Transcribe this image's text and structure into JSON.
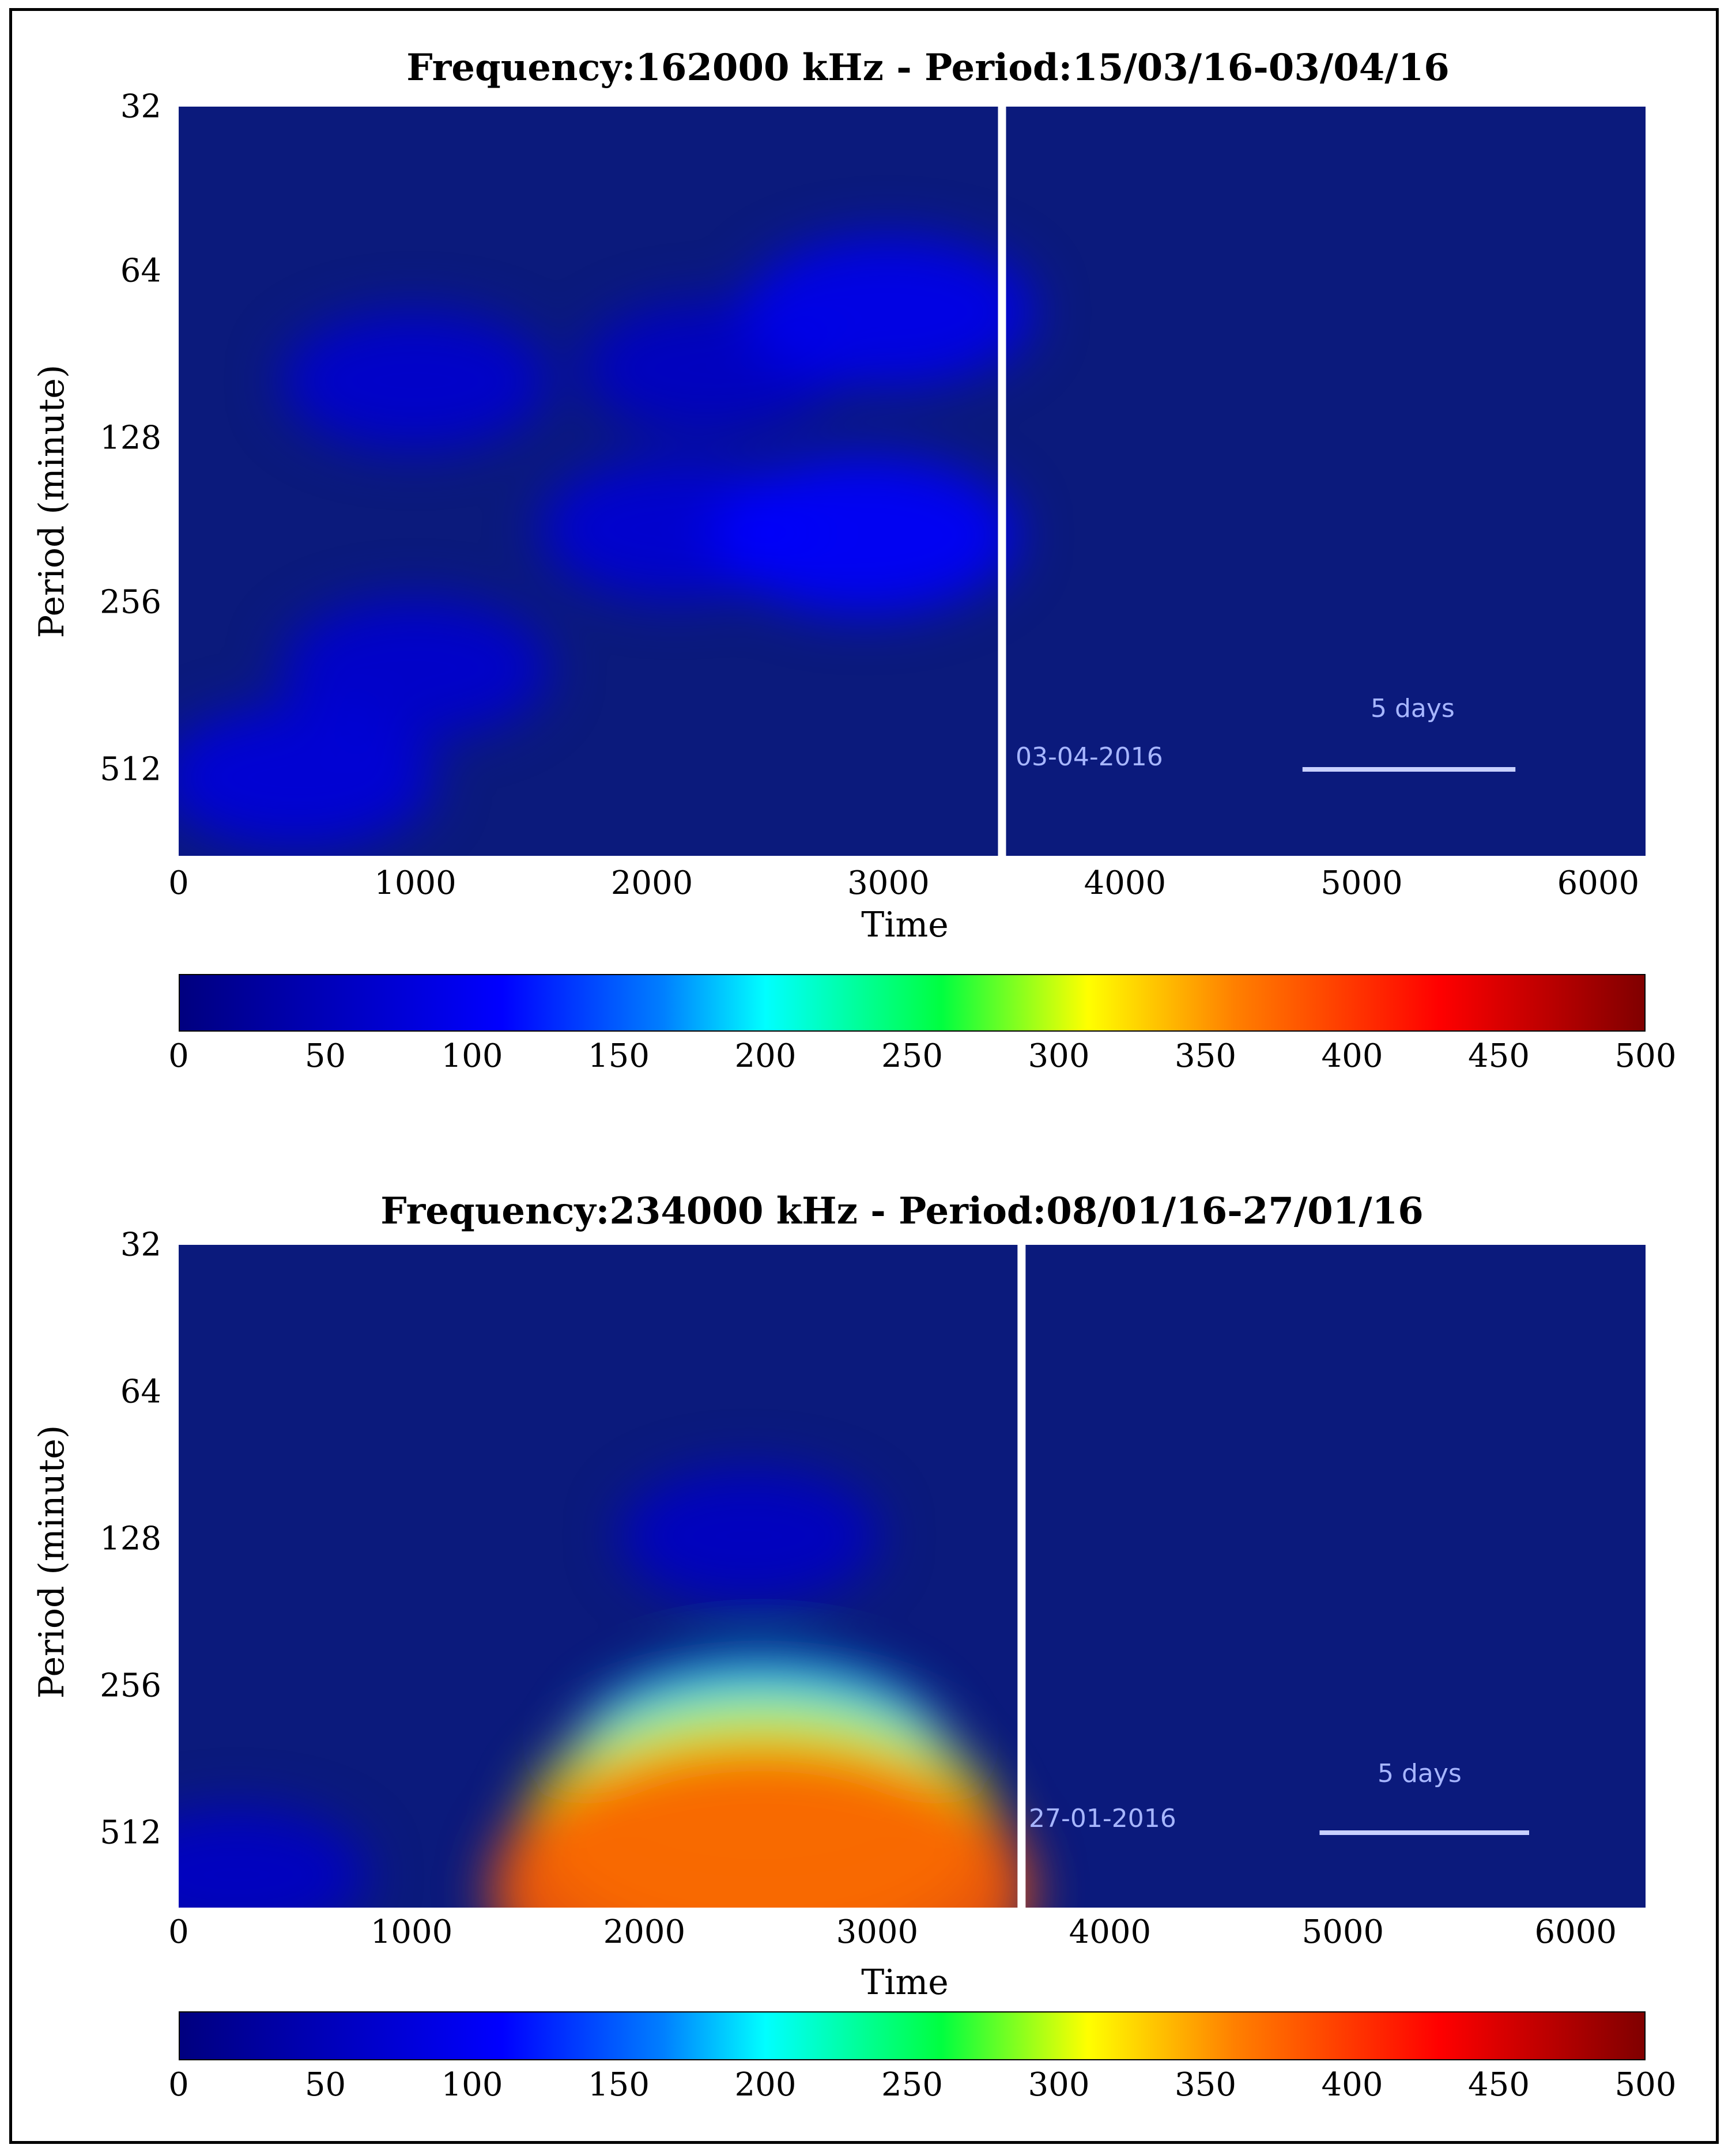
{
  "chart_data": [
    {
      "type": "heatmap",
      "title": "Frequency:162000 kHz - Period:15/03/16-03/04/16",
      "xlabel": "Time",
      "ylabel": "Period (minute)",
      "xlim": [
        0,
        6200
      ],
      "x_ticks": [
        "0",
        "1000",
        "2000",
        "3000",
        "4000",
        "5000",
        "6000"
      ],
      "y_ticks": [
        "32",
        "64",
        "128",
        "256",
        "512"
      ],
      "y_scale": "log2",
      "marker": {
        "x": 3480,
        "label": "03-04-2016"
      },
      "scale_bar": {
        "label": "5 days",
        "x_start": 4750,
        "x_end": 5650
      },
      "colorbar": {
        "range": [
          0,
          500
        ],
        "ticks": [
          "0",
          "50",
          "100",
          "150",
          "200",
          "250",
          "300",
          "350",
          "400",
          "450",
          "500"
        ]
      },
      "features": [
        {
          "x": 1000,
          "period": 100,
          "value": 70
        },
        {
          "x": 2250,
          "period": 95,
          "value": 60
        },
        {
          "x": 3000,
          "period": 75,
          "value": 95
        },
        {
          "x": 2900,
          "period": 190,
          "value": 110
        },
        {
          "x": 2100,
          "period": 185,
          "value": 75
        },
        {
          "x": 1000,
          "period": 330,
          "value": 70
        },
        {
          "x": 500,
          "period": 520,
          "value": 80
        }
      ]
    },
    {
      "type": "heatmap",
      "title": "Frequency:234000 kHz - Period:08/01/16-27/01/16",
      "xlabel": "Time",
      "ylabel": "Period (minute)",
      "xlim": [
        0,
        6300
      ],
      "x_ticks": [
        "0",
        "1000",
        "2000",
        "3000",
        "4000",
        "5000",
        "6000"
      ],
      "y_ticks": [
        "32",
        "64",
        "128",
        "256",
        "512"
      ],
      "y_scale": "log2",
      "marker": {
        "x": 3620,
        "label": "27-01-2016"
      },
      "scale_bar": {
        "label": "5 days",
        "x_start": 4900,
        "x_end": 5800
      },
      "colorbar": {
        "range": [
          0,
          500
        ],
        "ticks": [
          "0",
          "50",
          "100",
          "150",
          "200",
          "250",
          "300",
          "350",
          "400",
          "450",
          "500"
        ]
      },
      "features": [
        {
          "x": 2500,
          "period": 600,
          "value": 380
        },
        {
          "x": 2500,
          "period": 450,
          "value": 300
        },
        {
          "x": 2500,
          "period": 330,
          "value": 190
        },
        {
          "x": 2450,
          "period": 120,
          "value": 60
        },
        {
          "x": 250,
          "period": 560,
          "value": 60
        }
      ]
    }
  ]
}
